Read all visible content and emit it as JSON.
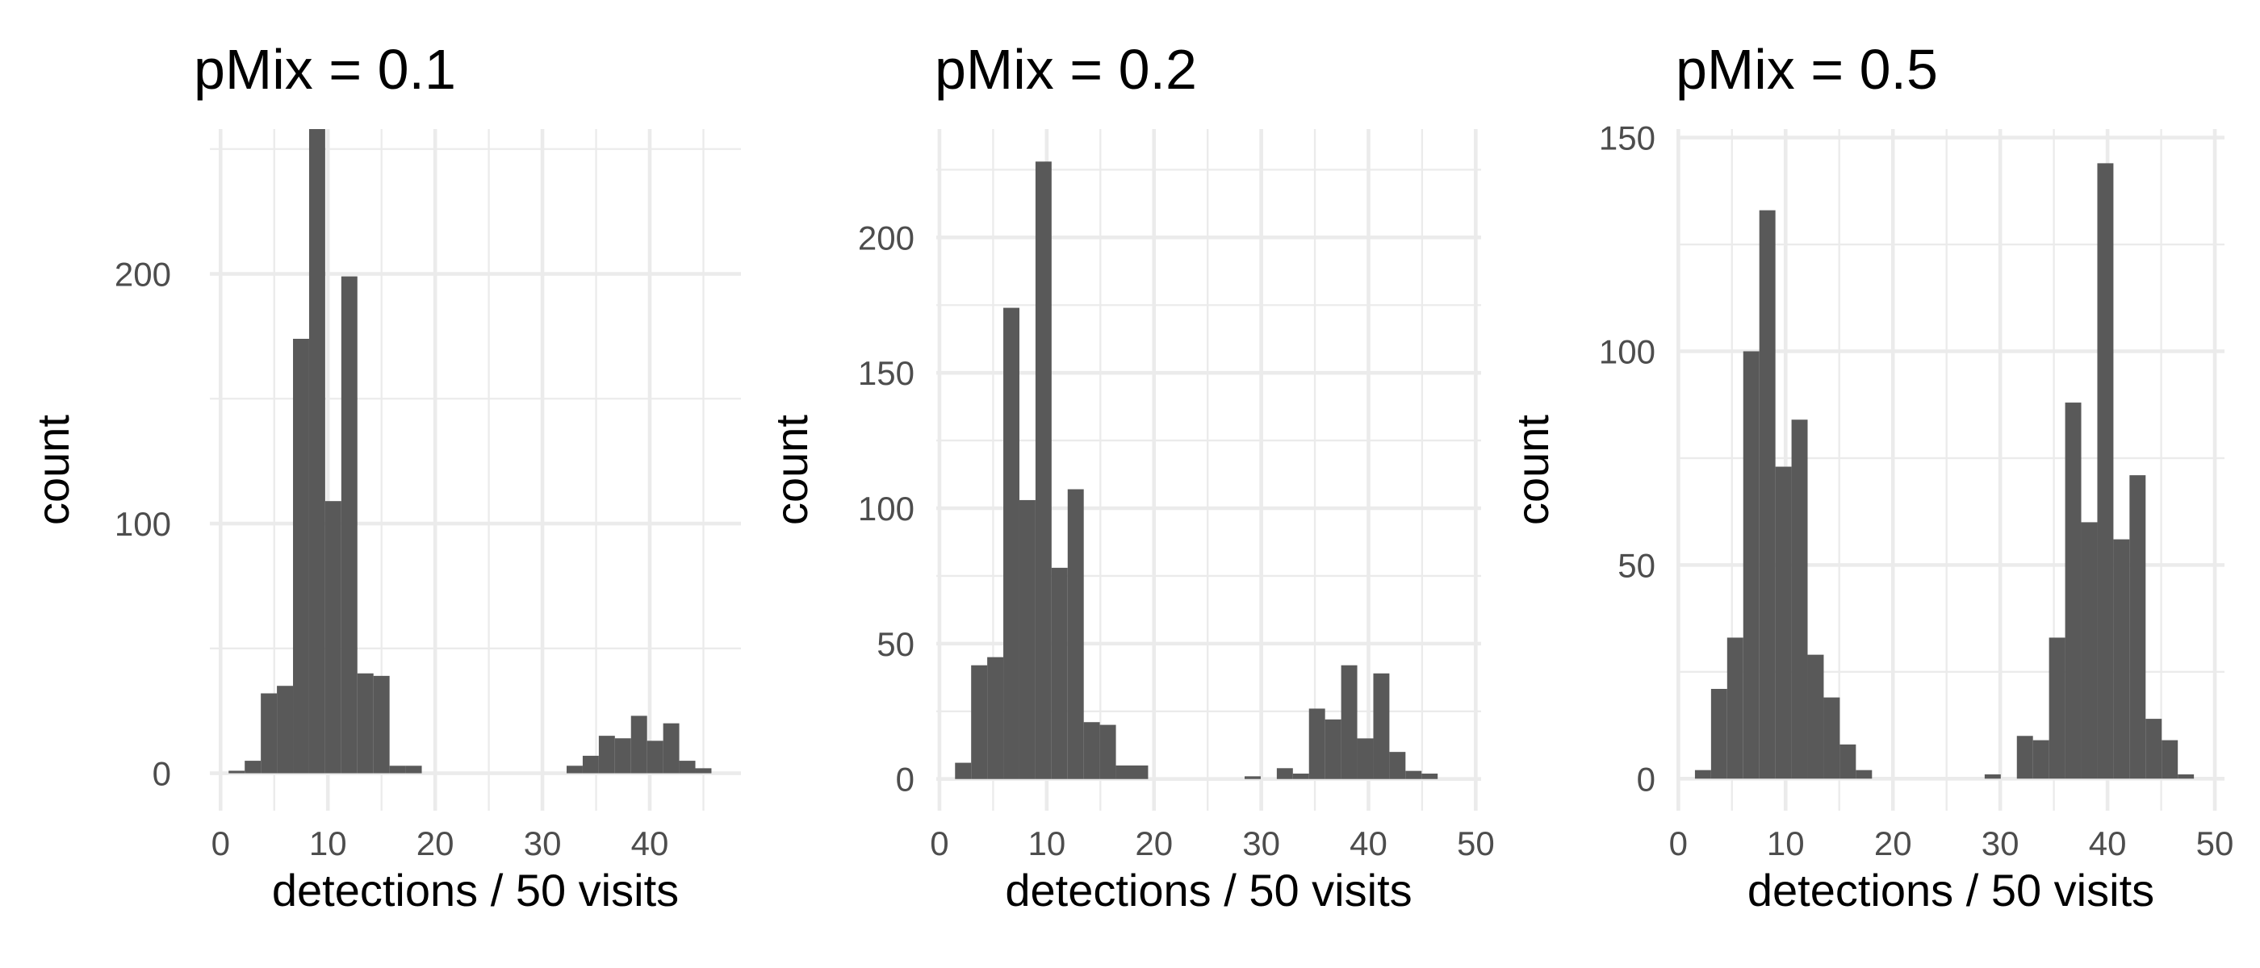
{
  "chart_data": [
    {
      "type": "bar",
      "title": "pMix = 0.1",
      "xlabel": "detections / 50 visits",
      "ylabel": "count",
      "xlim": [
        -1,
        48.5
      ],
      "ylim": [
        -15,
        258
      ],
      "x_ticks": [
        0,
        10,
        20,
        30,
        40
      ],
      "x_tick_labels": [
        "0",
        "10",
        "20",
        "30",
        "40"
      ],
      "y_ticks": [
        0,
        100,
        200
      ],
      "y_tick_labels": [
        "0",
        "100",
        "200"
      ],
      "bin_width": 1.5,
      "bins": [
        {
          "x": 1.5,
          "count": 1
        },
        {
          "x": 3.0,
          "count": 5
        },
        {
          "x": 4.5,
          "count": 32
        },
        {
          "x": 6.0,
          "count": 35
        },
        {
          "x": 7.5,
          "count": 174
        },
        {
          "x": 9.0,
          "count": 258
        },
        {
          "x": 10.5,
          "count": 109
        },
        {
          "x": 12.0,
          "count": 199
        },
        {
          "x": 13.5,
          "count": 40
        },
        {
          "x": 15.0,
          "count": 39
        },
        {
          "x": 16.5,
          "count": 3
        },
        {
          "x": 18.0,
          "count": 3
        },
        {
          "x": 33.0,
          "count": 3
        },
        {
          "x": 34.5,
          "count": 7
        },
        {
          "x": 36.0,
          "count": 15
        },
        {
          "x": 37.5,
          "count": 14
        },
        {
          "x": 39.0,
          "count": 23
        },
        {
          "x": 40.5,
          "count": 13
        },
        {
          "x": 42.0,
          "count": 20
        },
        {
          "x": 43.5,
          "count": 5
        },
        {
          "x": 45.0,
          "count": 2
        }
      ]
    },
    {
      "type": "bar",
      "title": "pMix = 0.2",
      "xlabel": "detections / 50 visits",
      "ylabel": "count",
      "xlim": [
        -0.3,
        50.5
      ],
      "ylim": [
        -11.7,
        240
      ],
      "x_ticks": [
        0,
        10,
        20,
        30,
        40,
        50
      ],
      "x_tick_labels": [
        "0",
        "10",
        "20",
        "30",
        "40",
        "50"
      ],
      "y_ticks": [
        0,
        50,
        100,
        150,
        200
      ],
      "y_tick_labels": [
        "0",
        "50",
        "100",
        "150",
        "200"
      ],
      "bin_width": 1.5,
      "bins": [
        {
          "x": 2.2,
          "count": 6
        },
        {
          "x": 3.7,
          "count": 42
        },
        {
          "x": 5.2,
          "count": 45
        },
        {
          "x": 6.7,
          "count": 174
        },
        {
          "x": 8.2,
          "count": 103
        },
        {
          "x": 9.7,
          "count": 228
        },
        {
          "x": 11.2,
          "count": 78
        },
        {
          "x": 12.7,
          "count": 107
        },
        {
          "x": 14.2,
          "count": 21
        },
        {
          "x": 15.7,
          "count": 20
        },
        {
          "x": 17.2,
          "count": 5
        },
        {
          "x": 18.7,
          "count": 5
        },
        {
          "x": 29.2,
          "count": 1
        },
        {
          "x": 32.2,
          "count": 4
        },
        {
          "x": 33.7,
          "count": 2
        },
        {
          "x": 35.2,
          "count": 26
        },
        {
          "x": 36.7,
          "count": 22
        },
        {
          "x": 38.2,
          "count": 42
        },
        {
          "x": 39.7,
          "count": 15
        },
        {
          "x": 41.2,
          "count": 39
        },
        {
          "x": 42.7,
          "count": 10
        },
        {
          "x": 44.2,
          "count": 3
        },
        {
          "x": 45.7,
          "count": 2
        }
      ]
    },
    {
      "type": "bar",
      "title": "pMix = 0.5",
      "xlabel": "detections / 50 visits",
      "ylabel": "count",
      "xlim": [
        -0.1,
        50.9
      ],
      "ylim": [
        -7.5,
        152
      ],
      "x_ticks": [
        0,
        10,
        20,
        30,
        40,
        50
      ],
      "x_tick_labels": [
        "0",
        "10",
        "20",
        "30",
        "40",
        "50"
      ],
      "y_ticks": [
        0,
        50,
        100,
        150
      ],
      "y_tick_labels": [
        "0",
        "50",
        "100",
        "150"
      ],
      "bin_width": 1.5,
      "bins": [
        {
          "x": 2.3,
          "count": 2
        },
        {
          "x": 3.8,
          "count": 21
        },
        {
          "x": 5.3,
          "count": 33
        },
        {
          "x": 6.8,
          "count": 100
        },
        {
          "x": 8.3,
          "count": 133
        },
        {
          "x": 9.8,
          "count": 73
        },
        {
          "x": 11.3,
          "count": 84
        },
        {
          "x": 12.8,
          "count": 29
        },
        {
          "x": 14.3,
          "count": 19
        },
        {
          "x": 15.8,
          "count": 8
        },
        {
          "x": 17.3,
          "count": 2
        },
        {
          "x": 29.3,
          "count": 1
        },
        {
          "x": 32.3,
          "count": 10
        },
        {
          "x": 33.8,
          "count": 9
        },
        {
          "x": 35.3,
          "count": 33
        },
        {
          "x": 36.8,
          "count": 88
        },
        {
          "x": 38.3,
          "count": 60
        },
        {
          "x": 39.8,
          "count": 144
        },
        {
          "x": 41.3,
          "count": 56
        },
        {
          "x": 42.8,
          "count": 71
        },
        {
          "x": 44.3,
          "count": 14
        },
        {
          "x": 45.8,
          "count": 9
        },
        {
          "x": 47.3,
          "count": 1
        }
      ]
    }
  ]
}
